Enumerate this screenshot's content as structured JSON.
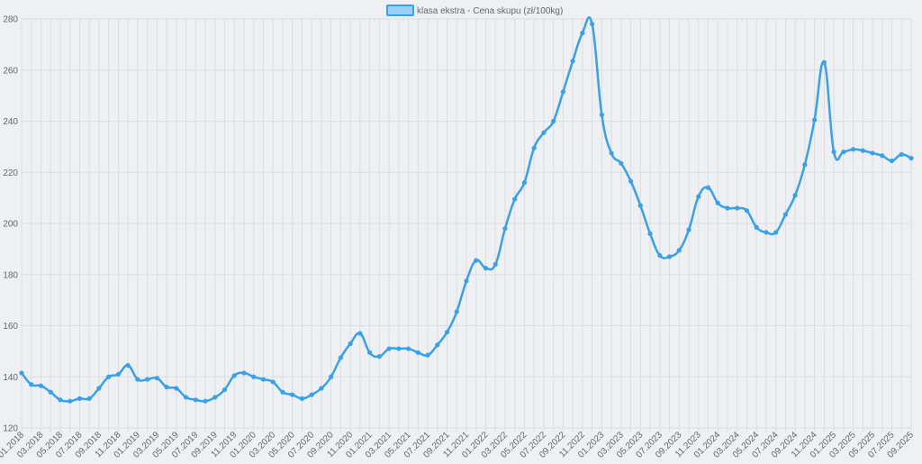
{
  "chart_data": {
    "type": "line",
    "legend": {
      "label": "klasa ekstra - Cena skupu (zł/100kg)",
      "position": "top-center"
    },
    "colors": {
      "line": "#36a2eb",
      "fill": "#9ad0f5",
      "grid": "#dcdde0",
      "text": "#666666",
      "background": "#eff0f3"
    },
    "ylim": [
      120,
      280
    ],
    "yticks": [
      120,
      140,
      160,
      180,
      200,
      220,
      240,
      260,
      280
    ],
    "grid": true,
    "x": [
      "01.2018",
      "02.2018",
      "03.2018",
      "04.2018",
      "05.2018",
      "06.2018",
      "07.2018",
      "08.2018",
      "09.2018",
      "10.2018",
      "11.2018",
      "12.2018",
      "01.2019",
      "02.2019",
      "03.2019",
      "04.2019",
      "05.2019",
      "06.2019",
      "07.2019",
      "08.2019",
      "09.2019",
      "10.2019",
      "11.2019",
      "12.2019",
      "01.2020",
      "02.2020",
      "03.2020",
      "04.2020",
      "05.2020",
      "06.2020",
      "07.2020",
      "08.2020",
      "09.2020",
      "10.2020",
      "11.2020",
      "12.2020",
      "01.2021",
      "02.2021",
      "03.2021",
      "04.2021",
      "05.2021",
      "06.2021",
      "07.2021",
      "08.2021",
      "09.2021",
      "10.2021",
      "11.2021",
      "12.2021",
      "01.2022",
      "02.2022",
      "03.2022",
      "04.2022",
      "05.2022",
      "06.2022",
      "07.2022",
      "08.2022",
      "09.2022",
      "10.2022",
      "11.2022",
      "12.2022",
      "01.2023",
      "02.2023",
      "03.2023",
      "04.2023",
      "05.2023",
      "06.2023",
      "07.2023",
      "08.2023",
      "09.2023",
      "10.2023",
      "11.2023",
      "12.2023",
      "01.2024",
      "02.2024",
      "03.2024",
      "04.2024",
      "05.2024",
      "06.2024",
      "07.2024",
      "08.2024",
      "09.2024",
      "10.2024",
      "11.2024",
      "12.2024",
      "01.2025",
      "02.2025",
      "03.2025",
      "04.2025",
      "05.2025",
      "06.2025",
      "07.2025",
      "08.2025",
      "09.2025"
    ],
    "xtick_labels": [
      "01.2018",
      "03.2018",
      "05.2018",
      "07.2018",
      "09.2018",
      "11.2018",
      "01.2019",
      "03.2019",
      "05.2019",
      "07.2019",
      "09.2019",
      "11.2019",
      "01.2020",
      "03.2020",
      "05.2020",
      "07.2020",
      "09.2020",
      "11.2020",
      "01.2021",
      "03.2021",
      "05.2021",
      "07.2021",
      "09.2021",
      "11.2021",
      "01.2022",
      "03.2022",
      "05.2022",
      "07.2022",
      "09.2022",
      "11.2022",
      "01.2023",
      "03.2023",
      "05.2023",
      "07.2023",
      "09.2023",
      "11.2023",
      "01.2024",
      "03.2024",
      "05.2024",
      "07.2024",
      "09.2024",
      "11.2024",
      "01.2025",
      "03.2025",
      "05.2025",
      "07.2025",
      "09.2025"
    ],
    "series": [
      {
        "name": "klasa ekstra - Cena skupu (zł/100kg)",
        "values": [
          141.5,
          137.0,
          136.5,
          134.0,
          131.0,
          130.5,
          131.5,
          131.5,
          135.5,
          140.0,
          141.0,
          144.5,
          139.0,
          139.0,
          139.5,
          136.0,
          135.5,
          132.0,
          131.0,
          130.5,
          132.0,
          135.0,
          140.5,
          141.5,
          140.0,
          139.0,
          138.0,
          134.0,
          133.0,
          131.5,
          133.0,
          135.5,
          140.0,
          147.5,
          153.0,
          157.0,
          149.5,
          148.0,
          151.0,
          151.0,
          151.0,
          149.5,
          148.5,
          152.5,
          157.5,
          165.5,
          177.5,
          185.5,
          182.5,
          184.0,
          198.0,
          209.5,
          216.0,
          229.5,
          235.5,
          240.0,
          251.5,
          263.5,
          274.5,
          278.0,
          242.5,
          227.5,
          223.5,
          216.5,
          207.0,
          196.0,
          187.5,
          187.0,
          189.5,
          197.5,
          210.5,
          214.0,
          208.0,
          206.0,
          206.0,
          205.0,
          198.5,
          196.5,
          196.5,
          203.5,
          211.0,
          223.0,
          240.5,
          263.0,
          228.0,
          228.0,
          229.0,
          228.5,
          227.5,
          226.5,
          224.5,
          227.0,
          225.5
        ]
      }
    ]
  }
}
